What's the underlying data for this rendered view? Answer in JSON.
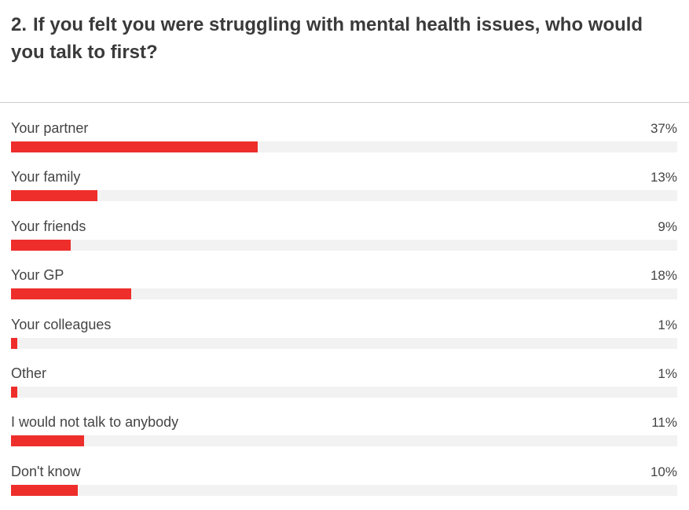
{
  "question": {
    "number": "2.",
    "text": "If you felt you were struggling with mental health issues, who would you talk to first?"
  },
  "colors": {
    "bar": "#ee2e2b",
    "track": "#f2f2f2"
  },
  "chart_data": {
    "type": "bar",
    "orientation": "horizontal",
    "title": "If you felt you were struggling with mental health issues, who would you talk to first?",
    "categories": [
      "Your partner",
      "Your family",
      "Your friends",
      "Your GP",
      "Your colleagues",
      "Other",
      "I would not talk to anybody",
      "Don't know"
    ],
    "values": [
      37,
      13,
      9,
      18,
      1,
      1,
      11,
      10
    ],
    "value_labels": [
      "37%",
      "13%",
      "9%",
      "18%",
      "1%",
      "1%",
      "11%",
      "10%"
    ],
    "unit": "%",
    "xlim": [
      0,
      100
    ]
  }
}
